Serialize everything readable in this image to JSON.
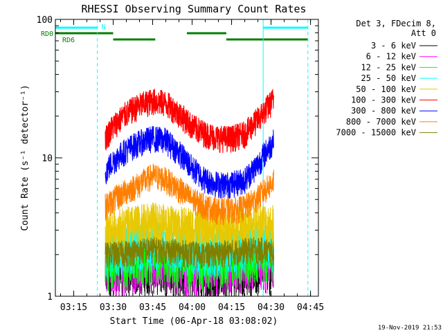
{
  "chart_data": {
    "type": "line",
    "title": "RHESSI Observing Summary Count Rates",
    "xlabel": "Start Time (06-Apr-18 03:08:02)",
    "ylabel": "Count Rate (s⁻¹ detector⁻¹)",
    "y_scale": "log",
    "xlim": [
      "03:08:02",
      "04:48:00"
    ],
    "ylim": [
      1,
      100
    ],
    "x_ticks": [
      "03:15",
      "03:30",
      "03:45",
      "04:00",
      "04:15",
      "04:30",
      "04:45"
    ],
    "y_ticks": [
      "1",
      "10",
      "100"
    ],
    "legend_title": "Det 3, FDecim 8, Att 0",
    "legend_position": "right",
    "data_start": "03:27",
    "data_end": "04:31",
    "series": [
      {
        "name": "3 - 6 keV",
        "color": "#000000",
        "x": [
          "03:27",
          "03:37",
          "03:45",
          "03:55",
          "04:05",
          "04:15",
          "04:25",
          "04:31"
        ],
        "values": [
          1.5,
          1.6,
          1.7,
          1.6,
          1.5,
          1.6,
          1.7,
          1.6
        ]
      },
      {
        "name": "6 - 12 keV",
        "color": "#ff00ff",
        "x": [
          "03:27",
          "03:37",
          "03:45",
          "03:55",
          "04:05",
          "04:15",
          "04:25",
          "04:31"
        ],
        "values": [
          1.6,
          1.7,
          1.8,
          1.7,
          1.6,
          1.7,
          1.8,
          1.7
        ]
      },
      {
        "name": "12 - 25 keV",
        "color": "#00ff00",
        "x": [
          "03:27",
          "03:37",
          "03:45",
          "03:55",
          "04:05",
          "04:15",
          "04:25",
          "04:31"
        ],
        "values": [
          1.8,
          1.9,
          2.0,
          1.9,
          1.8,
          1.9,
          2.0,
          1.9
        ]
      },
      {
        "name": "25 - 50 keV",
        "color": "#00ffff",
        "x": [
          "03:27",
          "03:37",
          "03:45",
          "03:55",
          "04:05",
          "04:15",
          "04:25",
          "04:31"
        ],
        "values": [
          2.2,
          2.4,
          2.5,
          2.4,
          2.2,
          2.3,
          2.5,
          2.4
        ]
      },
      {
        "name": "50 - 100 keV",
        "color": "#e8c800",
        "x": [
          "03:27",
          "03:37",
          "03:45",
          "03:55",
          "04:05",
          "04:15",
          "04:25",
          "04:31"
        ],
        "values": [
          3.0,
          3.2,
          3.4,
          3.2,
          3.0,
          3.1,
          3.4,
          3.3
        ]
      },
      {
        "name": "100 - 300 keV",
        "color": "#ff0000",
        "x": [
          "03:27",
          "03:30",
          "03:35",
          "03:40",
          "03:45",
          "03:50",
          "03:55",
          "04:00",
          "04:05",
          "04:10",
          "04:15",
          "04:20",
          "04:25",
          "04:30",
          "04:31"
        ],
        "values": [
          14,
          17,
          21,
          24,
          26,
          25,
          21,
          17,
          15,
          14,
          14,
          15,
          19,
          25,
          27
        ]
      },
      {
        "name": "300 - 800 keV",
        "color": "#0000ff",
        "x": [
          "03:27",
          "03:30",
          "03:35",
          "03:40",
          "03:45",
          "03:50",
          "03:55",
          "04:00",
          "04:05",
          "04:10",
          "04:15",
          "04:20",
          "04:25",
          "04:30",
          "04:31"
        ],
        "values": [
          8,
          9.5,
          11.5,
          13,
          14,
          13.5,
          11,
          8.5,
          7,
          6.5,
          6.5,
          7,
          9,
          12.5,
          14
        ]
      },
      {
        "name": "800 - 7000 keV",
        "color": "#ff8000",
        "x": [
          "03:27",
          "03:30",
          "03:35",
          "03:40",
          "03:45",
          "03:50",
          "03:55",
          "04:00",
          "04:05",
          "04:10",
          "04:15",
          "04:20",
          "04:25",
          "04:30",
          "04:31"
        ],
        "values": [
          4.5,
          5.0,
          5.8,
          6.5,
          7.5,
          7.0,
          6.0,
          5.0,
          4.5,
          4.2,
          4.2,
          4.4,
          5.2,
          6.5,
          7.0
        ]
      },
      {
        "name": "7000 - 15000 keV",
        "color": "#808000",
        "x": [
          "03:27",
          "03:37",
          "03:45",
          "03:55",
          "04:05",
          "04:15",
          "04:25",
          "04:31"
        ],
        "values": [
          2.0,
          2.1,
          2.2,
          2.1,
          2.0,
          2.1,
          2.2,
          2.1
        ]
      }
    ],
    "flags": [
      {
        "label": "RD0",
        "color": "#007f00",
        "segments": [
          [
            "03:08",
            "03:30"
          ],
          [
            "03:58",
            "04:13"
          ]
        ]
      },
      {
        "label": "RD6",
        "color": "#007f00",
        "segments": [
          [
            "03:30",
            "03:46"
          ],
          [
            "04:13",
            "04:44"
          ]
        ]
      },
      {
        "label": "N",
        "color": "#00ffff",
        "segments": [
          [
            "03:08",
            "03:24"
          ],
          [
            "04:27",
            "04:44"
          ]
        ]
      }
    ],
    "vertical_markers": [
      {
        "x": "03:08",
        "color": "#00ffff",
        "style": "solid"
      },
      {
        "x": "03:24",
        "color": "#00ffff",
        "style": "dashed"
      },
      {
        "x": "04:27",
        "color": "#00ffff",
        "style": "solid"
      },
      {
        "x": "04:44",
        "color": "#00ffff",
        "style": "dashed"
      }
    ],
    "footer_timestamp": "19-Nov-2019 21:53"
  }
}
